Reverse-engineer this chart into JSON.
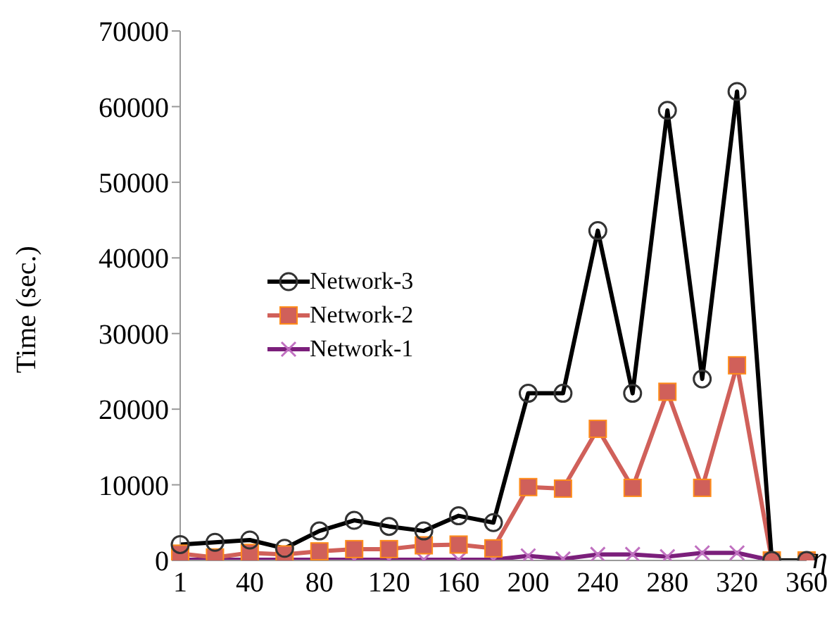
{
  "chart_data": {
    "type": "line",
    "xlabel": "η",
    "ylabel": "Time (sec.)",
    "categories": [
      "1",
      null,
      "40",
      null,
      "80",
      null,
      "120",
      null,
      "160",
      null,
      "200",
      null,
      "240",
      null,
      "280",
      null,
      "320",
      null,
      "360"
    ],
    "ylim": [
      0,
      70000
    ],
    "yticks": [
      0,
      10000,
      20000,
      30000,
      40000,
      50000,
      60000,
      70000
    ],
    "grid": false,
    "legend": "left",
    "series": [
      {
        "name": "Network-3",
        "color": "#000000",
        "marker": "circle",
        "values": [
          2100,
          2400,
          2700,
          1600,
          3900,
          5300,
          4500,
          3900,
          5900,
          5000,
          22100,
          22100,
          43600,
          22100,
          59500,
          24000,
          62000,
          0,
          0
        ]
      },
      {
        "name": "Network-2",
        "color": "#d0605a",
        "marker": "square",
        "values": [
          900,
          400,
          1000,
          800,
          1200,
          1500,
          1500,
          2000,
          2100,
          1600,
          9700,
          9500,
          17400,
          9600,
          22300,
          9600,
          25800,
          0,
          0
        ]
      },
      {
        "name": "Network-1",
        "color": "#7b1f7b",
        "marker": "cross",
        "values": [
          100,
          100,
          100,
          100,
          100,
          100,
          100,
          100,
          100,
          100,
          600,
          200,
          800,
          800,
          500,
          1000,
          1000,
          0,
          0
        ]
      }
    ]
  }
}
